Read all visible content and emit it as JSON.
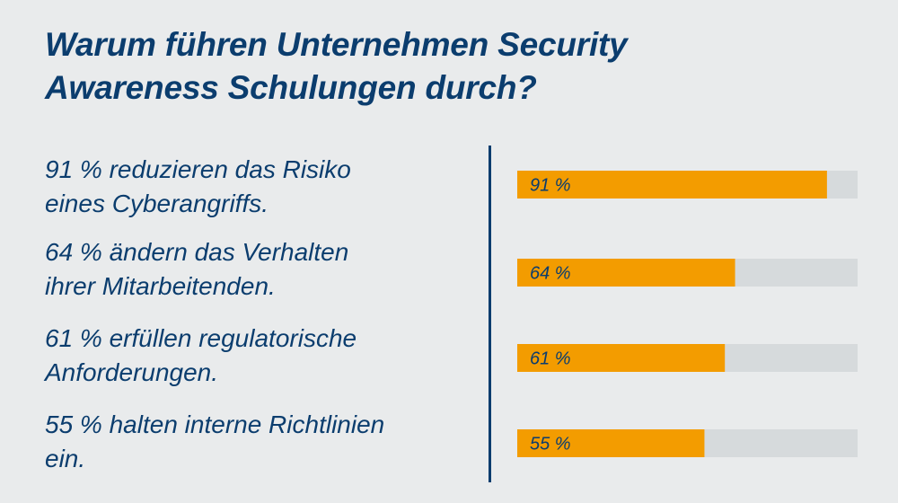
{
  "title": {
    "line1": "Warum führen Unternehmen Security",
    "line2": "Awareness Schulungen durch?"
  },
  "statements": [
    {
      "line1": "91 % reduzieren das Risiko",
      "line2": "eines Cyberangriffs."
    },
    {
      "line1": "64 % ändern das Verhalten",
      "line2": "ihrer Mitarbeitenden."
    },
    {
      "line1": "61 % erfüllen regulatorische",
      "line2": "Anforderungen."
    },
    {
      "line1": "55 % halten interne Richtlinien",
      "line2": "ein."
    }
  ],
  "colors": {
    "bar": "#f39c00",
    "track": "#d6dadc",
    "text": "#0b3d6e",
    "background": "#e9ebec"
  },
  "chart_data": {
    "type": "bar",
    "orientation": "horizontal",
    "values": [
      91,
      64,
      61,
      55
    ],
    "value_labels": [
      "91 %",
      "64 %",
      "61 %",
      "55 %"
    ],
    "xlim": [
      0,
      100
    ],
    "grid": false
  }
}
